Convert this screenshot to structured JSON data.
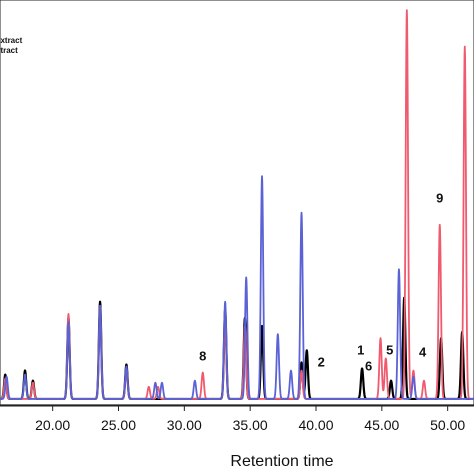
{
  "chart_data": {
    "type": "line",
    "title": "",
    "xlabel": "Retention time",
    "ylabel": "",
    "xlim": [
      16.0,
      52.0
    ],
    "ylim": [
      0,
      1000
    ],
    "x_ticks": [
      20,
      25,
      30,
      35,
      40,
      45,
      50
    ],
    "x_tick_labels": [
      "20.00",
      "25.00",
      "30.00",
      "35.00",
      "40.00",
      "45.00",
      "50.00"
    ],
    "legend": {
      "placement": "top-left",
      "entries": [
        {
          "label": "extract",
          "color": "#000000"
        },
        {
          "label": "xtract",
          "color": "#000000"
        }
      ]
    },
    "series": [
      {
        "color": "#000000",
        "baseline": 15,
        "peaks": [
          [
            16.4,
            60
          ],
          [
            17.9,
            70
          ],
          [
            18.5,
            45
          ],
          [
            21.2,
            200
          ],
          [
            23.6,
            240
          ],
          [
            25.6,
            85
          ],
          [
            33.1,
            220
          ],
          [
            34.6,
            200
          ],
          [
            35.9,
            180
          ],
          [
            38.9,
            90
          ],
          [
            39.3,
            120
          ],
          [
            43.5,
            75
          ],
          [
            45.7,
            45
          ],
          [
            46.7,
            250
          ],
          [
            49.5,
            150
          ],
          [
            51.1,
            165
          ]
        ]
      },
      {
        "color": "#f05a6e",
        "baseline": 15,
        "peaks": [
          [
            16.4,
            50
          ],
          [
            18.5,
            40
          ],
          [
            21.2,
            210
          ],
          [
            23.6,
            230
          ],
          [
            25.6,
            75
          ],
          [
            27.3,
            30
          ],
          [
            28.0,
            30
          ],
          [
            31.4,
            65
          ],
          [
            33.1,
            190
          ],
          [
            34.6,
            180
          ],
          [
            38.9,
            70
          ],
          [
            44.9,
            150
          ],
          [
            45.3,
            100
          ],
          [
            46.9,
            960
          ],
          [
            47.4,
            70
          ],
          [
            48.2,
            45
          ],
          [
            49.4,
            430
          ],
          [
            51.3,
            870
          ]
        ]
      },
      {
        "color": "#5a62d6",
        "baseline": 15,
        "peaks": [
          [
            16.5,
            55
          ],
          [
            17.9,
            60
          ],
          [
            21.2,
            190
          ],
          [
            23.6,
            230
          ],
          [
            25.6,
            80
          ],
          [
            27.8,
            40
          ],
          [
            28.3,
            40
          ],
          [
            30.8,
            45
          ],
          [
            33.1,
            240
          ],
          [
            34.7,
            300
          ],
          [
            35.9,
            550
          ],
          [
            37.1,
            160
          ],
          [
            38.1,
            70
          ],
          [
            38.9,
            460
          ],
          [
            46.3,
            320
          ],
          [
            47.4,
            55
          ]
        ]
      }
    ],
    "annotations": [
      {
        "text": "8",
        "x": 31.4,
        "y": 110
      },
      {
        "text": "2",
        "x": 40.4,
        "y": 95
      },
      {
        "text": "1",
        "x": 43.4,
        "y": 125
      },
      {
        "text": "6",
        "x": 44.0,
        "y": 85
      },
      {
        "text": "5",
        "x": 45.6,
        "y": 125
      },
      {
        "text": "4",
        "x": 48.1,
        "y": 120
      },
      {
        "text": "9",
        "x": 49.4,
        "y": 500
      }
    ]
  }
}
